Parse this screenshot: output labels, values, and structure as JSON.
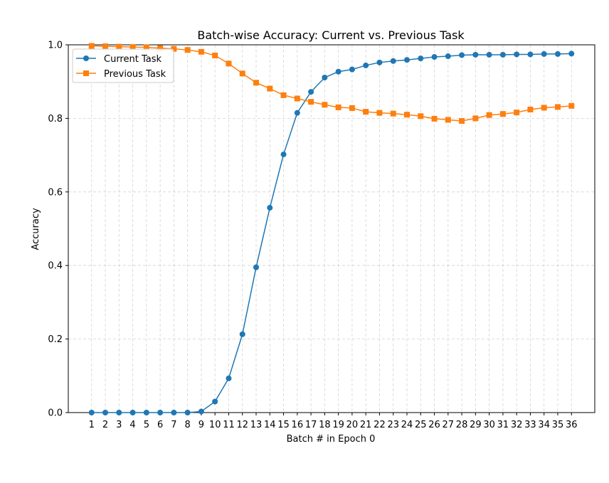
{
  "chart_data": {
    "type": "line",
    "title": "Batch-wise Accuracy: Current vs. Previous Task",
    "xlabel": "Batch # in Epoch 0",
    "ylabel": "Accuracy",
    "x": [
      1,
      2,
      3,
      4,
      5,
      6,
      7,
      8,
      9,
      10,
      11,
      12,
      13,
      14,
      15,
      16,
      17,
      18,
      19,
      20,
      21,
      22,
      23,
      24,
      25,
      26,
      27,
      28,
      29,
      30,
      31,
      32,
      33,
      34,
      35,
      36
    ],
    "xlim": [
      -0.7,
      37.7
    ],
    "ylim": [
      0.0,
      1.0
    ],
    "yticks": [
      0.0,
      0.2,
      0.4,
      0.6,
      0.8,
      1.0
    ],
    "ytick_labels": [
      "0.0",
      "0.2",
      "0.4",
      "0.6",
      "0.8",
      "1.0"
    ],
    "grid": true,
    "legend_position": "top-left",
    "series": [
      {
        "name": "Current Task",
        "color": "#1f77b4",
        "marker": "circle",
        "values": [
          0.0,
          0.0,
          0.0,
          0.0,
          0.0,
          0.0,
          0.0,
          0.0,
          0.003,
          0.03,
          0.093,
          0.213,
          0.395,
          0.557,
          0.702,
          0.815,
          0.872,
          0.911,
          0.927,
          0.933,
          0.944,
          0.952,
          0.956,
          0.959,
          0.963,
          0.967,
          0.969,
          0.972,
          0.973,
          0.973,
          0.973,
          0.974,
          0.974,
          0.975,
          0.975,
          0.976
        ]
      },
      {
        "name": "Previous Task",
        "color": "#ff7f0e",
        "marker": "square",
        "values": [
          0.997,
          0.996,
          0.995,
          0.994,
          0.993,
          0.991,
          0.989,
          0.986,
          0.981,
          0.971,
          0.949,
          0.922,
          0.897,
          0.881,
          0.863,
          0.854,
          0.845,
          0.837,
          0.83,
          0.828,
          0.818,
          0.815,
          0.813,
          0.81,
          0.806,
          0.799,
          0.796,
          0.793,
          0.8,
          0.809,
          0.812,
          0.816,
          0.824,
          0.829,
          0.831,
          0.834
        ]
      }
    ]
  }
}
